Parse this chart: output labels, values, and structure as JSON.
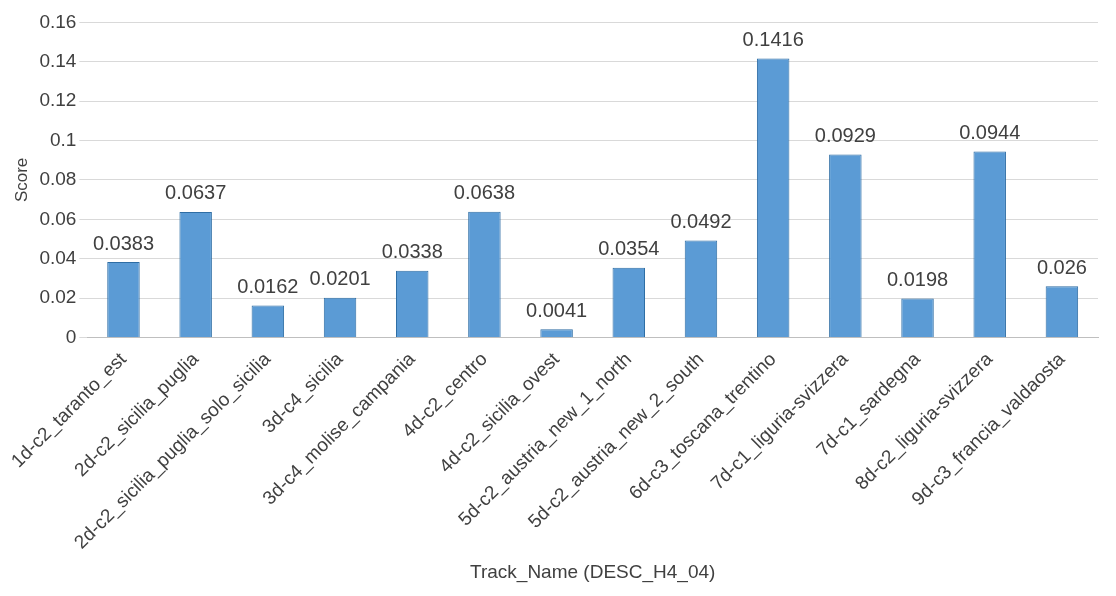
{
  "chart_data": {
    "type": "bar",
    "xlabel": "Track_Name (DESC_H4_04)",
    "ylabel": "Score",
    "categories": [
      "1d-c2_taranto_est",
      "2d-c2_sicilia_puglia",
      "2d-c2_sicilia_puglia_solo_sicilia",
      "3d-c4_sicilia",
      "3d-c4_molise_campania",
      "4d-c2_centro",
      "4d-c2_sicilia_ovest",
      "5d-c2_austria_new_1_north",
      "5d-c2_austria_new_2_south",
      "6d-c3_toscana_trentino",
      "7d-c1_liguria-svizzera",
      "7d-c1_sardegna",
      "8d-c2_liguria-svizzera",
      "9d-c3_francia_valdaosta"
    ],
    "values": [
      0.0383,
      0.0637,
      0.0162,
      0.0201,
      0.0338,
      0.0638,
      0.0041,
      0.0354,
      0.0492,
      0.1416,
      0.0929,
      0.0198,
      0.0944,
      0.026
    ],
    "color": "#5b9bd5",
    "ylim": [
      0,
      0.16
    ],
    "yticks": [
      0,
      0.02,
      0.04,
      0.06,
      0.08,
      0.1,
      0.12,
      0.14,
      0.16
    ],
    "grid": "y",
    "data_labels": true
  }
}
